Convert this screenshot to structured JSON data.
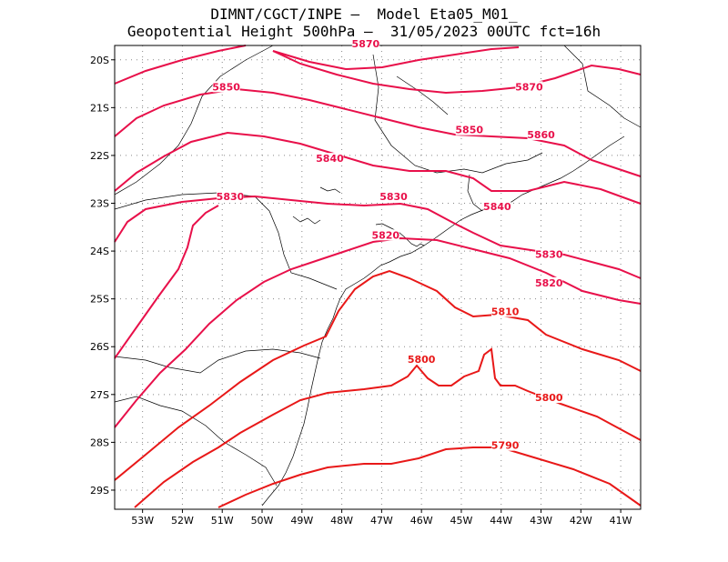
{
  "title_line1": "DIMNT/CGCT/INPE –  Model Eta05_M01_",
  "title_line2": "Geopotential Height 500hPa –  31/05/2023 00UTC fct=16h",
  "colors": {
    "contour_high": "#e8104a",
    "contour_low": "#e81818",
    "grid": "#888888",
    "coast": "#000000"
  },
  "map": {
    "lon_range": [
      -53.7,
      -40.5
    ],
    "lat_range": [
      -29.4,
      -19.7
    ],
    "grid": "dotted"
  },
  "lat_ticks": [
    "20S",
    "21S",
    "22S",
    "23S",
    "24S",
    "25S",
    "26S",
    "27S",
    "28S",
    "29S"
  ],
  "lon_ticks": [
    "53W",
    "52W",
    "51W",
    "50W",
    "49W",
    "48W",
    "47W",
    "46W",
    "45W",
    "44W",
    "43W",
    "42W",
    "41W"
  ],
  "contour_labels": [
    {
      "text": "5870",
      "lon": -47.4,
      "lat": -19.7
    },
    {
      "text": "5870",
      "lon": -43.3,
      "lat": -20.6
    },
    {
      "text": "5860",
      "lon": -43.0,
      "lat": -21.6
    },
    {
      "text": "5850",
      "lon": -50.9,
      "lat": -20.6
    },
    {
      "text": "5850",
      "lon": -44.8,
      "lat": -21.5
    },
    {
      "text": "5840",
      "lon": -48.3,
      "lat": -22.1
    },
    {
      "text": "5840",
      "lon": -44.1,
      "lat": -23.1
    },
    {
      "text": "5830",
      "lon": -50.8,
      "lat": -22.9
    },
    {
      "text": "5830",
      "lon": -46.7,
      "lat": -22.9
    },
    {
      "text": "5830",
      "lon": -42.8,
      "lat": -24.1
    },
    {
      "text": "5820",
      "lon": -46.9,
      "lat": -23.7
    },
    {
      "text": "5820",
      "lon": -42.8,
      "lat": -24.7
    },
    {
      "text": "5810",
      "lon": -43.9,
      "lat": -25.3
    },
    {
      "text": "5800",
      "lon": -46.0,
      "lat": -26.3
    },
    {
      "text": "5800",
      "lon": -42.8,
      "lat": -27.1
    },
    {
      "text": "5790",
      "lon": -43.9,
      "lat": -28.1
    }
  ],
  "chart_data": {
    "type": "contour",
    "field": "geopotential height 500hPa",
    "levels": [
      5790,
      5800,
      5810,
      5820,
      5830,
      5840,
      5850,
      5860,
      5870
    ],
    "xlim": [
      -53.7,
      -40.5
    ],
    "ylim": [
      -29.4,
      -19.7
    ]
  }
}
